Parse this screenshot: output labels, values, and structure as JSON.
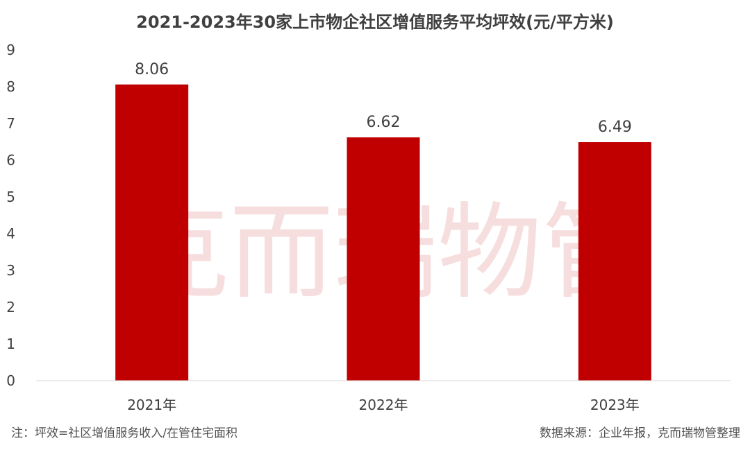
{
  "chart_data": {
    "type": "bar",
    "title": "2021-2023年30家上市物企社区增值服务平均坪效(元/平方米)",
    "categories": [
      "2021年",
      "2022年",
      "2023年"
    ],
    "values": [
      8.06,
      6.62,
      6.49
    ],
    "data_labels": [
      "8.06",
      "6.62",
      "6.49"
    ],
    "ylim": [
      0,
      9
    ],
    "yticks": [
      "0",
      "1",
      "2",
      "3",
      "4",
      "5",
      "6",
      "7",
      "8",
      "9"
    ],
    "bar_color": "#c00000",
    "grid": false,
    "legend": "none"
  },
  "footnote_left": "注：坪效=社区增值服务收入/在管住宅面积",
  "footnote_right": "数据来源：企业年报，克而瑞物管整理",
  "watermark": "克而瑞物管"
}
